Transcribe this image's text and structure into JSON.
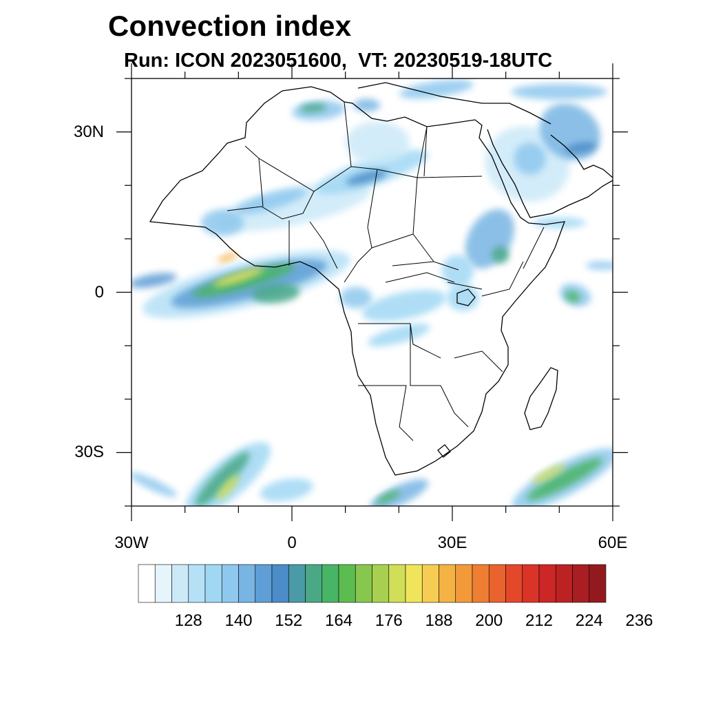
{
  "title": "Convection index",
  "subtitle": "Run: ICON 2023051600,  VT: 20230519-18UTC",
  "map": {
    "extent": {
      "lon": [
        -30,
        60
      ],
      "lat": [
        -40,
        40
      ]
    },
    "lat_ticks": [
      {
        "value": 30,
        "label": "30N"
      },
      {
        "value": 0,
        "label": "0"
      },
      {
        "value": -30,
        "label": "30S"
      }
    ],
    "lon_ticks": [
      {
        "value": -30,
        "label": "30W"
      },
      {
        "value": 0,
        "label": "0"
      },
      {
        "value": 30,
        "label": "30E"
      },
      {
        "value": 60,
        "label": "60E"
      }
    ]
  },
  "colorbar": {
    "colors": [
      "#ffffff",
      "#e6f4fc",
      "#cce9f8",
      "#b5e0f6",
      "#a0d8f4",
      "#8fc8ee",
      "#78b5e3",
      "#5f9ed6",
      "#4c8cc8",
      "#4a9aa8",
      "#4aa886",
      "#48b466",
      "#5cbc50",
      "#88c74e",
      "#a8d050",
      "#d0de58",
      "#f0e45a",
      "#f6cc52",
      "#f4b244",
      "#f29a3a",
      "#ee7e32",
      "#ea632e",
      "#e4482a",
      "#da3428",
      "#cc2626",
      "#bc2224",
      "#a81e22",
      "#921a1e"
    ],
    "labels": [
      "128",
      "140",
      "152",
      "164",
      "176",
      "188",
      "200",
      "212",
      "224",
      "236"
    ]
  },
  "fields": [
    {
      "name": "west-africa-itcz-outer",
      "color": "#b5e0f6",
      "lon": -8.5,
      "lat": 1.5,
      "rx": 20,
      "ry": 4.2,
      "rot": -14
    },
    {
      "name": "west-africa-itcz-mid",
      "color": "#5f9ed6",
      "lon": -8,
      "lat": 1.6,
      "rx": 15,
      "ry": 2.8,
      "rot": -14
    },
    {
      "name": "west-africa-itcz-green",
      "color": "#48b466",
      "lon": -9,
      "lat": 2.2,
      "rx": 10,
      "ry": 1.6,
      "rot": -16
    },
    {
      "name": "west-africa-itcz-yellow",
      "color": "#f0e45a",
      "lon": -10,
      "lat": 2.8,
      "rx": 5,
      "ry": 0.8,
      "rot": -18
    },
    {
      "name": "west-africa-itcz-orange",
      "color": "#f4b244",
      "lon": -12,
      "lat": 6.5,
      "rx": 2,
      "ry": 0.6,
      "rot": -20
    },
    {
      "name": "gulf-guinea-blob",
      "color": "#4aa886",
      "lon": -3,
      "lat": -0.2,
      "rx": 4.5,
      "ry": 1.8,
      "rot": -5
    },
    {
      "name": "far-west-atlantic-band",
      "color": "#5f9ed6",
      "lon": -26,
      "lat": 2.2,
      "rx": 4.5,
      "ry": 1.2,
      "rot": -10
    },
    {
      "name": "sahel-band-outer",
      "color": "#cce9f8",
      "lon": 0,
      "lat": 16,
      "rx": 15,
      "ry": 3.5,
      "rot": -12
    },
    {
      "name": "sahel-band-blue",
      "color": "#8fc8ee",
      "lon": -4,
      "lat": 17,
      "rx": 7,
      "ry": 1.5,
      "rot": -16
    },
    {
      "name": "west-coast-senegal",
      "color": "#8fc8ee",
      "lon": -13,
      "lat": 13,
      "rx": 4,
      "ry": 2.5,
      "rot": 0
    },
    {
      "name": "central-sahara-band",
      "color": "#a0d8f4",
      "lon": 15,
      "lat": 22.5,
      "rx": 11,
      "ry": 2.5,
      "rot": -18
    },
    {
      "name": "central-sahara-core",
      "color": "#4c8cc8",
      "lon": 14,
      "lat": 21.5,
      "rx": 4,
      "ry": 1,
      "rot": -15
    },
    {
      "name": "libya-north-haze",
      "color": "#cce9f8",
      "lon": 16,
      "lat": 28,
      "rx": 6,
      "ry": 4,
      "rot": 0
    },
    {
      "name": "algeria-north-blob",
      "color": "#8fc8ee",
      "lon": 5,
      "lat": 34,
      "rx": 5,
      "ry": 1.8,
      "rot": -5
    },
    {
      "name": "algeria-north-core",
      "color": "#4aa886",
      "lon": 4,
      "lat": 34.5,
      "rx": 2.5,
      "ry": 0.8,
      "rot": -5
    },
    {
      "name": "tunisia-blob",
      "color": "#78b5e3",
      "lon": 14,
      "lat": 35,
      "rx": 2.5,
      "ry": 1.2,
      "rot": 0
    },
    {
      "name": "med-east-band",
      "color": "#8fc8ee",
      "lon": 27,
      "lat": 38,
      "rx": 7,
      "ry": 1.5,
      "rot": -8
    },
    {
      "name": "saudi-haze",
      "color": "#cce9f8",
      "lon": 44,
      "lat": 24,
      "rx": 8,
      "ry": 7,
      "rot": 15
    },
    {
      "name": "saudi-inner",
      "color": "#8fc8ee",
      "lon": 44.5,
      "lat": 25,
      "rx": 3,
      "ry": 3,
      "rot": 0
    },
    {
      "name": "iran-north-band",
      "color": "#78b5e3",
      "lon": 52,
      "lat": 30,
      "rx": 6,
      "ry": 5,
      "rot": 35
    },
    {
      "name": "gulf-core",
      "color": "#4c8cc8",
      "lon": 54,
      "lat": 27,
      "rx": 3,
      "ry": 1,
      "rot": -10
    },
    {
      "name": "turkey-north",
      "color": "#8fc8ee",
      "lon": 50,
      "lat": 37.5,
      "rx": 9,
      "ry": 1.5,
      "rot": 0
    },
    {
      "name": "ethiopia-highlands",
      "color": "#78b5e3",
      "lon": 37,
      "lat": 10,
      "rx": 4,
      "ry": 6,
      "rot": 30
    },
    {
      "name": "ethiopia-core",
      "color": "#4aa886",
      "lon": 39,
      "lat": 7,
      "rx": 1.6,
      "ry": 1.6,
      "rot": 0
    },
    {
      "name": "south-sudan-haze",
      "color": "#a0d8f4",
      "lon": 31,
      "lat": 4,
      "rx": 3,
      "ry": 3,
      "rot": 0
    },
    {
      "name": "congo-band",
      "color": "#a0d8f4",
      "lon": 21,
      "lat": -2.5,
      "rx": 8,
      "ry": 2.5,
      "rot": -12
    },
    {
      "name": "angola-band",
      "color": "#a0d8f4",
      "lon": 20,
      "lat": -8,
      "rx": 6,
      "ry": 1.5,
      "rot": -15
    },
    {
      "name": "cameroon-blob",
      "color": "#8fc8ee",
      "lon": 12,
      "lat": -1,
      "rx": 3,
      "ry": 2,
      "rot": 0
    },
    {
      "name": "lake-victoria-haze",
      "color": "#a0d8f4",
      "lon": 32,
      "lat": -1,
      "rx": 3,
      "ry": 2.5,
      "rot": 0
    },
    {
      "name": "seychelles-outer",
      "color": "#8fc8ee",
      "lon": 53,
      "lat": -0.5,
      "rx": 3,
      "ry": 2,
      "rot": 20
    },
    {
      "name": "seychelles-core",
      "color": "#48b466",
      "lon": 52.5,
      "lat": -0.8,
      "rx": 1.5,
      "ry": 1,
      "rot": 20
    },
    {
      "name": "somalia-east-band",
      "color": "#8fc8ee",
      "lon": 58,
      "lat": 5,
      "rx": 3,
      "ry": 0.8,
      "rot": 0
    },
    {
      "name": "horn-ocean-band",
      "color": "#a0d8f4",
      "lon": 50,
      "lat": 13,
      "rx": 5,
      "ry": 1,
      "rot": 0
    },
    {
      "name": "south-atlantic-band-outer",
      "color": "#a0d8f4",
      "lon": -12,
      "lat": -35,
      "rx": 10,
      "ry": 3.5,
      "rot": -40
    },
    {
      "name": "south-atlantic-band-mid",
      "color": "#4aa886",
      "lon": -13,
      "lat": -35,
      "rx": 7,
      "ry": 1.6,
      "rot": -45
    },
    {
      "name": "south-atlantic-band-yellow",
      "color": "#d0de58",
      "lon": -12,
      "lat": -36.5,
      "rx": 3,
      "ry": 0.9,
      "rot": -50
    },
    {
      "name": "south-atlantic-west-arc",
      "color": "#8fc8ee",
      "lon": -26,
      "lat": -36,
      "rx": 5,
      "ry": 1,
      "rot": 25
    },
    {
      "name": "south-atlantic-east",
      "color": "#a0d8f4",
      "lon": -1,
      "lat": -37,
      "rx": 5,
      "ry": 2,
      "rot": -10
    },
    {
      "name": "south-africa-south-band",
      "color": "#78b5e3",
      "lon": 20,
      "lat": -38,
      "rx": 6,
      "ry": 1.8,
      "rot": -25
    },
    {
      "name": "south-africa-south-core",
      "color": "#48b466",
      "lon": 18,
      "lat": -38.3,
      "rx": 2.5,
      "ry": 0.7,
      "rot": -25
    },
    {
      "name": "indian-ocean-band-outer",
      "color": "#8fc8ee",
      "lon": 51,
      "lat": -35,
      "rx": 11,
      "ry": 3,
      "rot": -28
    },
    {
      "name": "indian-ocean-band-mid",
      "color": "#48b466",
      "lon": 51,
      "lat": -35,
      "rx": 8,
      "ry": 1.5,
      "rot": -28
    },
    {
      "name": "indian-ocean-band-yellow",
      "color": "#d0de58",
      "lon": 48,
      "lat": -34,
      "rx": 3.5,
      "ry": 0.8,
      "rot": -28
    }
  ]
}
